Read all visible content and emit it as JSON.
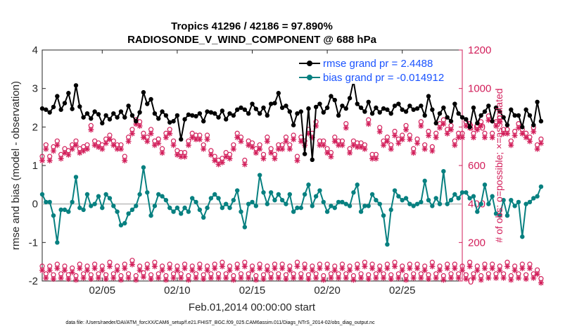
{
  "chart_data": {
    "type": "line",
    "title_line1": "Tropics 41296 / 42186 = 97.890%",
    "title_line2": "RADIOSONDE_V_WIND_COMPONENT @ 688 hPa",
    "xlabel": "Feb.01,2014 00:00:00 start",
    "ylabel_left": "rmse and bias (model - observation)",
    "ylabel_right": "# of obs: o=possible; ×=assimilated",
    "x_tick_labels": [
      "02/05",
      "02/10",
      "02/15",
      "02/20",
      "02/25"
    ],
    "x_tick_days": [
      5,
      10,
      15,
      20,
      25
    ],
    "xlim_days": [
      1,
      29
    ],
    "ylim_left": [
      -2,
      4
    ],
    "y_ticks_left": [
      "-2",
      "-1",
      "0",
      "1",
      "2",
      "3",
      "4"
    ],
    "ylim_right": [
      0,
      1200
    ],
    "y_ticks_right": [
      "0",
      "200",
      "400",
      "600",
      "800",
      "1000",
      "1200"
    ],
    "x_step_days": 0.25,
    "legend": [
      "rmse grand pr = 2.4488",
      "bias grand pr = -0.014912"
    ],
    "series": [
      {
        "name": "rmse",
        "color": "#000000",
        "values": [
          2.48,
          2.45,
          2.38,
          2.52,
          2.8,
          2.45,
          2.62,
          2.88,
          2.47,
          3.08,
          2.53,
          2.25,
          2.35,
          2.22,
          2.4,
          2.33,
          2.1,
          2.3,
          2.2,
          2.35,
          2.25,
          2.4,
          2.25,
          2.55,
          2.3,
          2.15,
          2.38,
          2.9,
          2.6,
          2.72,
          2.35,
          2.22,
          2.4,
          2.3,
          2.12,
          2.15,
          2.3,
          1.68,
          2.2,
          2.32,
          2.3,
          2.28,
          2.35,
          2.15,
          2.4,
          2.38,
          2.35,
          2.25,
          2.42,
          2.2,
          2.35,
          2.3,
          2.45,
          2.5,
          2.45,
          2.35,
          2.6,
          2.47,
          2.35,
          2.5,
          2.3,
          2.6,
          2.62,
          2.88,
          2.5,
          2.55,
          2.4,
          2.05,
          2.35,
          2.4,
          1.3,
          2.48,
          1.15,
          2.52,
          2.6,
          2.38,
          2.5,
          2.8,
          2.7,
          2.3,
          2.55,
          2.48,
          2.75,
          3.2,
          2.6,
          2.5,
          2.4,
          2.65,
          2.35,
          2.5,
          2.38,
          2.48,
          2.45,
          2.35,
          2.55,
          2.6,
          2.45,
          2.4,
          2.55,
          2.45,
          2.48,
          2.55,
          2.3,
          2.8,
          2.45,
          2.1,
          2.35,
          2.5,
          2.25,
          2.15,
          2.6,
          2.35,
          2.25,
          2.2,
          2.0,
          2.5,
          2.1,
          2.3,
          2.4,
          2.55,
          2.15,
          2.5,
          2.4,
          2.25,
          2.05,
          2.45,
          2.3,
          2.3,
          2.0,
          2.45,
          2.3,
          2.05,
          2.65,
          2.15
        ]
      },
      {
        "name": "bias",
        "color": "#078080",
        "values": [
          0.25,
          0.05,
          0.05,
          -0.3,
          -1.0,
          -0.15,
          -0.15,
          -0.2,
          0.05,
          0.7,
          -0.1,
          -0.15,
          0.25,
          -0.05,
          0.0,
          0.2,
          -0.1,
          0.25,
          0.15,
          -0.05,
          -0.2,
          -0.55,
          -0.5,
          -0.25,
          -0.15,
          -0.05,
          0.25,
          0.95,
          0.3,
          -0.3,
          -0.05,
          0.25,
          0.2,
          0.1,
          -0.1,
          -0.2,
          -0.1,
          -0.25,
          -0.1,
          -0.2,
          0.15,
          0.05,
          -0.15,
          -0.35,
          -0.1,
          0.15,
          0.25,
          0.15,
          -0.1,
          0.0,
          -0.1,
          0.1,
          0.35,
          -0.2,
          -0.6,
          0.0,
          0.05,
          -0.05,
          0.75,
          0.3,
          0.0,
          0.3,
          0.1,
          0.25,
          0.1,
          0.0,
          0.25,
          -0.2,
          -0.1,
          -0.1,
          0.25,
          0.5,
          -0.05,
          0.2,
          0.35,
          0.05,
          -0.2,
          -0.05,
          -0.1,
          0.05,
          0.05,
          0.0,
          -0.05,
          0.3,
          0.5,
          -0.2,
          -0.05,
          -0.05,
          0.25,
          0.1,
          0.0,
          -0.3,
          -1.05,
          -0.15,
          0.35,
          0.2,
          0.1,
          0.15,
          0.0,
          -0.05,
          0.0,
          0.05,
          0.6,
          0.1,
          -0.05,
          0.15,
          0.0,
          0.85,
          0.0,
          0.1,
          0.25,
          0.15,
          0.3,
          0.3,
          0.15,
          0.2,
          -0.2,
          0.0,
          0.5,
          0.0,
          0.2,
          -0.25,
          -0.3,
          0.1,
          -0.3,
          0.1,
          -0.05,
          0.05,
          -0.85,
          0.0,
          0.05,
          0.15,
          0.2,
          0.45
        ]
      },
      {
        "name": "possible obs",
        "color": "#d21e5a",
        "values": [
          640,
          700,
          640,
          690,
          720,
          650,
          680,
          670,
          700,
          720,
          680,
          690,
          700,
          800,
          720,
          710,
          700,
          730,
          750,
          720,
          700,
          700,
          640,
          740,
          780,
          830,
          820,
          760,
          740,
          780,
          720,
          730,
          680,
          760,
          780,
          720,
          670,
          660,
          660,
          720,
          760,
          750,
          750,
          700,
          750,
          670,
          640,
          620,
          630,
          660,
          650,
          700,
          760,
          740,
          620,
          720,
          710,
          680,
          700,
          650,
          740,
          680,
          650,
          700,
          700,
          740,
          700,
          750,
          640,
          740,
          720,
          780,
          760,
          820,
          720,
          720,
          680,
          660,
          740,
          720,
          720,
          810,
          680,
          720,
          710,
          710,
          700,
          830,
          650,
          650,
          790,
          720,
          740,
          700,
          770,
          730,
          750,
          800,
          750,
          680,
          730,
          820,
          700,
          770,
          690,
          760,
          810,
          830,
          780,
          800,
          720,
          760,
          760,
          820,
          810,
          760,
          800,
          820,
          760,
          850,
          760,
          820,
          840,
          780,
          780,
          720,
          770,
          810,
          780,
          760,
          740,
          790,
          700,
          730
        ]
      },
      {
        "name": "possible obs low",
        "color": "#d21e5a",
        "values": [
          70,
          30,
          70,
          25,
          80,
          30,
          70,
          25,
          60,
          20,
          80,
          30,
          70,
          25,
          80,
          30,
          70,
          25,
          90,
          30,
          70,
          20,
          80,
          30,
          100,
          20,
          70,
          35,
          80,
          25,
          90,
          30,
          70,
          20,
          80,
          30,
          70,
          30,
          80,
          20,
          70,
          30,
          80,
          25,
          70,
          30,
          80,
          30,
          90,
          30,
          70,
          20,
          80,
          30,
          90,
          30,
          70,
          20,
          80,
          25,
          70,
          30,
          80,
          30,
          80,
          25,
          70,
          30,
          90,
          30,
          80,
          25,
          70,
          30,
          80,
          20,
          80,
          30,
          70,
          30,
          80,
          30,
          70,
          20,
          80,
          30,
          90,
          25,
          80,
          30,
          70,
          30,
          80,
          25,
          90,
          30,
          70,
          20,
          80,
          30,
          80,
          30,
          70,
          25,
          90,
          30,
          70,
          20,
          80,
          30,
          80,
          30,
          70,
          25,
          90,
          30,
          70,
          20,
          80,
          30,
          80,
          30,
          70,
          30,
          90,
          20,
          70,
          30,
          80,
          25,
          80,
          30,
          50,
          5
        ]
      }
    ]
  },
  "footer": "data file: /Users/raeder/DAI/ATM_forcXX/CAM6_setup/f.e21.FHIST_BGC.f09_025.CAM6assim.011/Diags_NTrS_2014-02/obs_diag_output.nc"
}
